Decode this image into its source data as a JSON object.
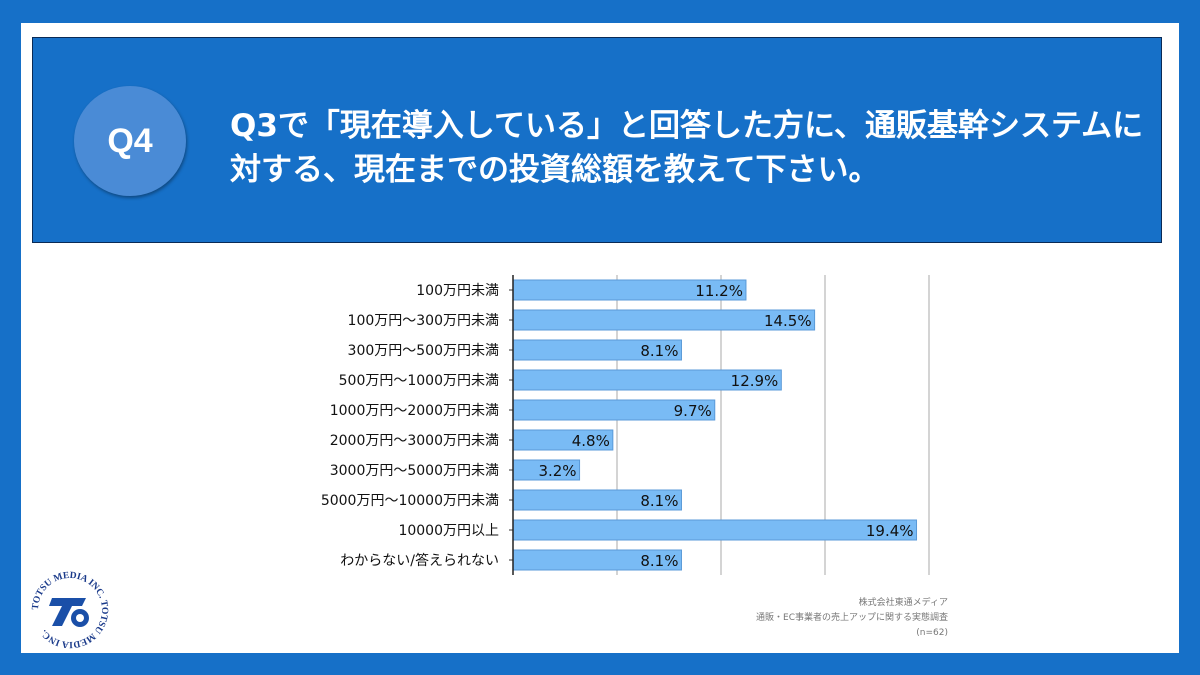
{
  "header": {
    "badge": "Q4",
    "title": "Q3で「現在導入している」と回答した方に、通販基幹システムに対する、現在までの投資総額を教えて下さい。"
  },
  "colors": {
    "background": "#1670c8",
    "bar": "#79bbf5",
    "badge": "#4a8bd6"
  },
  "chart_data": {
    "type": "bar",
    "orientation": "horizontal",
    "categories": [
      "100万円未満",
      "100万円～300万円未満",
      "300万円～500万円未満",
      "500万円～1000万円未満",
      "1000万円～2000万円未満",
      "2000万円～3000万円未満",
      "3000万円～5000万円未満",
      "5000万円～10000万円未満",
      "10000万円以上",
      "わからない/答えられない"
    ],
    "values": [
      11.2,
      14.5,
      8.1,
      12.9,
      9.7,
      4.8,
      3.2,
      8.1,
      19.4,
      8.1
    ],
    "data_labels": [
      "11.2%",
      "14.5%",
      "8.1%",
      "12.9%",
      "9.7%",
      "4.8%",
      "3.2%",
      "8.1%",
      "19.4%",
      "8.1%"
    ],
    "xlim": [
      0,
      20
    ],
    "grid": true,
    "gridlines": [
      5,
      10,
      15,
      20
    ]
  },
  "footer": {
    "company": "株式会社東通メディア",
    "survey": "通販・EC事業者の売上アップに関する実態調査",
    "n": "(n=62)"
  },
  "logo": {
    "text": "TOTSU MEDIA INC. TOTSU MEDIA INC."
  }
}
